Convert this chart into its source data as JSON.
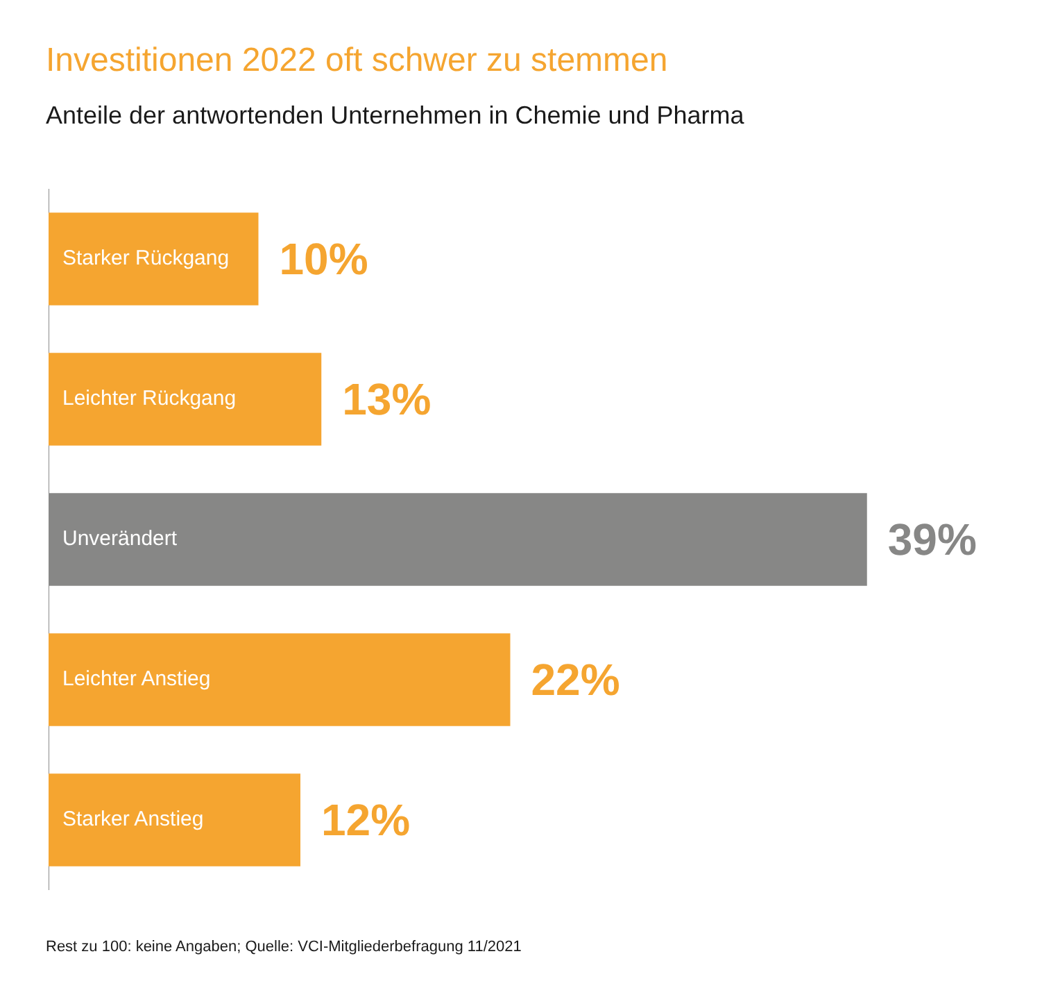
{
  "chart_data": {
    "type": "bar",
    "orientation": "horizontal",
    "title": "Investitionen 2022 oft schwer zu stemmen",
    "subtitle": "Anteile der antwortenden Unternehmen in Chemie und Pharma",
    "categories": [
      "Starker Rückgang",
      "Leichter Rückgang",
      "Unverändert",
      "Leichter Anstieg",
      "Starker Anstieg"
    ],
    "values": [
      10,
      13,
      39,
      22,
      12
    ],
    "colors": [
      "#f5a530",
      "#f5a530",
      "#878786",
      "#f5a530",
      "#f5a530"
    ],
    "value_labels": [
      "10%",
      "13%",
      "39%",
      "22%",
      "12%"
    ],
    "legend": false,
    "annotations": [
      "Rest zu 100: keine Angaben; Quelle: VCI-Mitgliederbefragung 11/2021"
    ]
  }
}
